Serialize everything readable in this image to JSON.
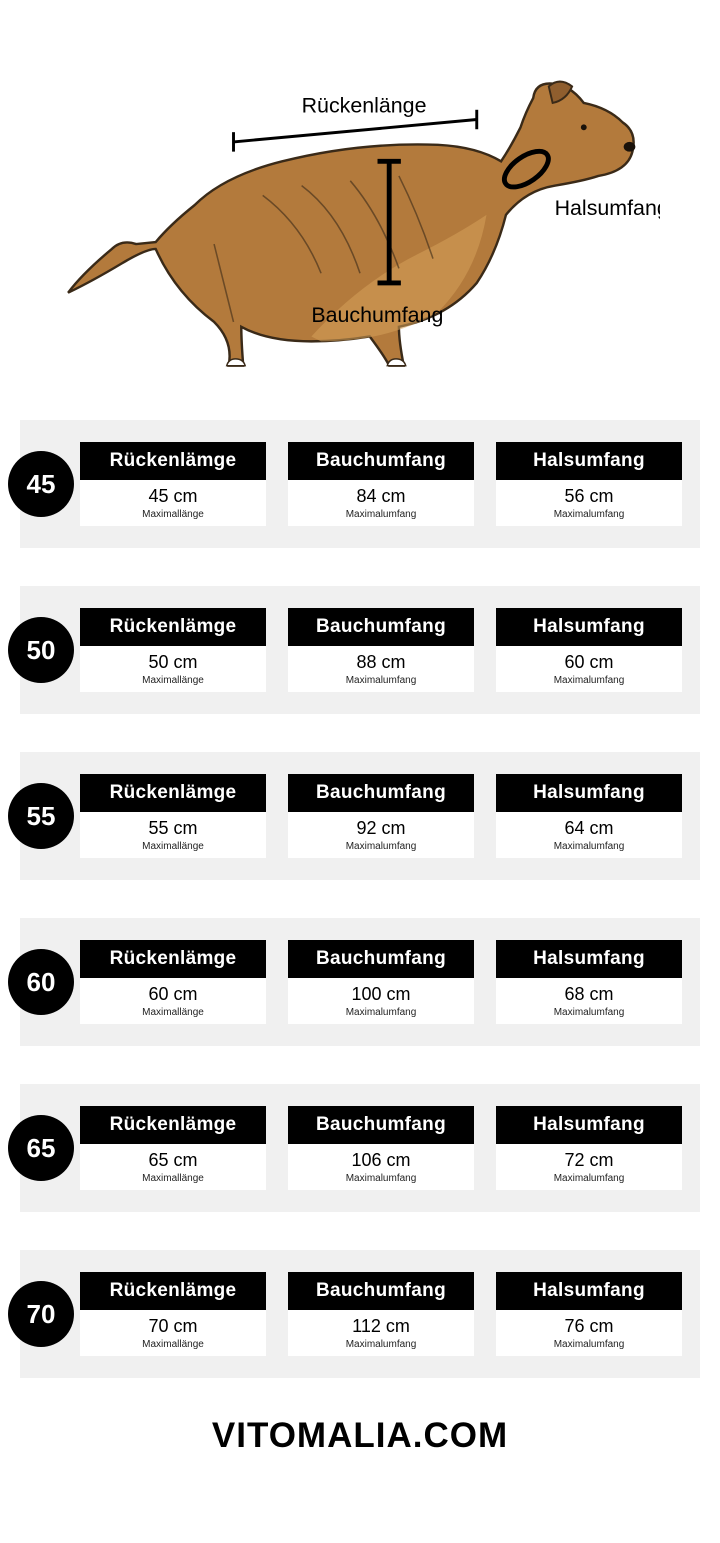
{
  "diagram": {
    "back_label": "Rückenlänge",
    "neck_label": "Halsumfang",
    "belly_label": "Bauchumfang",
    "dog_fill": "#b37a3c",
    "dog_stroke": "#3a2a18",
    "highlight": "#d6a05a"
  },
  "columns": {
    "back": "Rückenlämge",
    "belly": "Bauchumfang",
    "neck": "Halsumfang"
  },
  "subs": {
    "len": "Maximallänge",
    "circ": "Maximalumfang"
  },
  "sizes": [
    {
      "size": "45",
      "back": "45 cm",
      "belly": "84 cm",
      "neck": "56 cm"
    },
    {
      "size": "50",
      "back": "50 cm",
      "belly": "88 cm",
      "neck": "60 cm"
    },
    {
      "size": "55",
      "back": "55 cm",
      "belly": "92 cm",
      "neck": "64 cm"
    },
    {
      "size": "60",
      "back": "60 cm",
      "belly": "100 cm",
      "neck": "68 cm"
    },
    {
      "size": "65",
      "back": "65 cm",
      "belly": "106 cm",
      "neck": "72 cm"
    },
    {
      "size": "70",
      "back": "70 cm",
      "belly": "112 cm",
      "neck": "76 cm"
    }
  ],
  "brand": "VITOMALIA.COM",
  "colors": {
    "card_bg": "#f0f0f0",
    "header_bg": "#000000",
    "header_fg": "#ffffff",
    "badge_bg": "#000000",
    "badge_fg": "#ffffff"
  }
}
